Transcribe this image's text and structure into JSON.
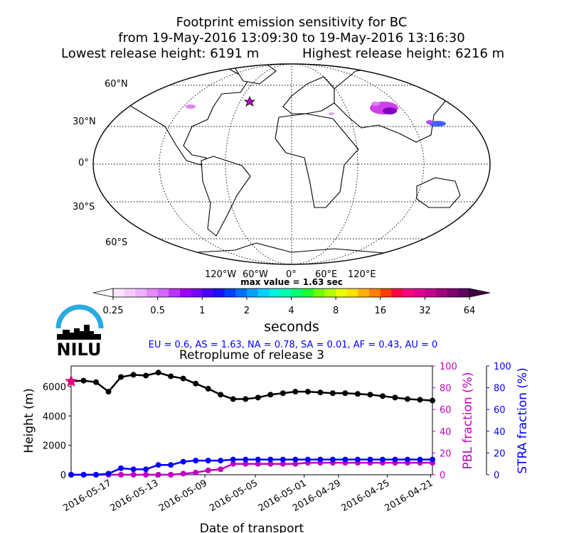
{
  "map": {
    "title_line1": "Footprint emission sensitivity for BC",
    "title_line2": "from 19-May-2016 13:09:30 to 19-May-2016 13:16:30",
    "title_lowest": "Lowest release height: 6191 m",
    "title_highest": "Highest release height: 6216 m",
    "lat_labels": [
      "60°N",
      "30°N",
      "0°",
      "30°S",
      "60°S"
    ],
    "lon_labels": [
      "120°W",
      "60°W",
      "0°",
      "60°E",
      "120°E"
    ],
    "max_value": "max value = 1.63 sec",
    "colorbar_ticks": [
      "0.25",
      "0.5",
      "1",
      "2",
      "4",
      "8",
      "16",
      "32",
      "64"
    ],
    "colorbar_label": "seconds",
    "region_summary": "EU = 0.6,  AS = 1.63,  NA = 0.78,  SA = 0.01,  AF = 0.43,  AU = 0",
    "logo_text": "NILU",
    "colors": {
      "region_text": "#0000ff",
      "coast": "#000000",
      "marker": "#c000c0"
    }
  },
  "chart_data": [
    {
      "type": "line",
      "title": "Retroplume of release 3",
      "xlabel": "Date of transport",
      "x_tick_labels": [
        "2016-05-17",
        "2016-05-13",
        "2016-05-09",
        "2016-05-05",
        "2016-05-01",
        "2016-04-29",
        "2016-04-25",
        "2016-04-21"
      ],
      "series": [
        {
          "name": "Height (m)",
          "color": "#000000",
          "values": [
            6360,
            6400,
            6300,
            5650,
            6650,
            6800,
            6750,
            6950,
            6700,
            6550,
            6200,
            5850,
            5450,
            5150,
            5150,
            5250,
            5450,
            5550,
            5650,
            5650,
            5600,
            5550,
            5550,
            5500,
            5450,
            5350,
            5250,
            5150,
            5100,
            5050
          ]
        },
        {
          "name": "PBL fraction (%)",
          "color": "#c000c0",
          "values": [
            0,
            0,
            0,
            0,
            0,
            0,
            0,
            0,
            0,
            1,
            2,
            4,
            5,
            10,
            10,
            10,
            10,
            10,
            10,
            11,
            11,
            11,
            11,
            11,
            11,
            11,
            11,
            11,
            11,
            11
          ]
        },
        {
          "name": "STRA fraction (%)",
          "color": "#0000ff",
          "values": [
            0,
            0,
            0,
            1,
            6,
            5,
            5,
            9,
            9,
            12,
            13,
            13,
            13,
            14,
            14,
            14,
            14,
            14,
            14,
            14,
            14,
            14,
            14,
            14,
            14,
            14,
            14,
            14,
            14,
            14
          ]
        }
      ],
      "y_left": {
        "label": "Height (m)",
        "ylim": [
          0,
          7400
        ],
        "ticks": [
          "0",
          "2000",
          "4000",
          "6000"
        ]
      },
      "y_right_pbl": {
        "label": "PBL fraction (%)",
        "ylim": [
          0,
          100
        ],
        "ticks": [
          "0",
          "20",
          "40",
          "60",
          "80",
          "100"
        ],
        "color": "#c000c0"
      },
      "y_right_stra": {
        "label": "STRA fraction (%)",
        "ylim": [
          0,
          100
        ],
        "ticks": [
          "0",
          "20",
          "40",
          "60",
          "80",
          "100"
        ],
        "color": "#0000ff"
      },
      "grid": false
    }
  ]
}
